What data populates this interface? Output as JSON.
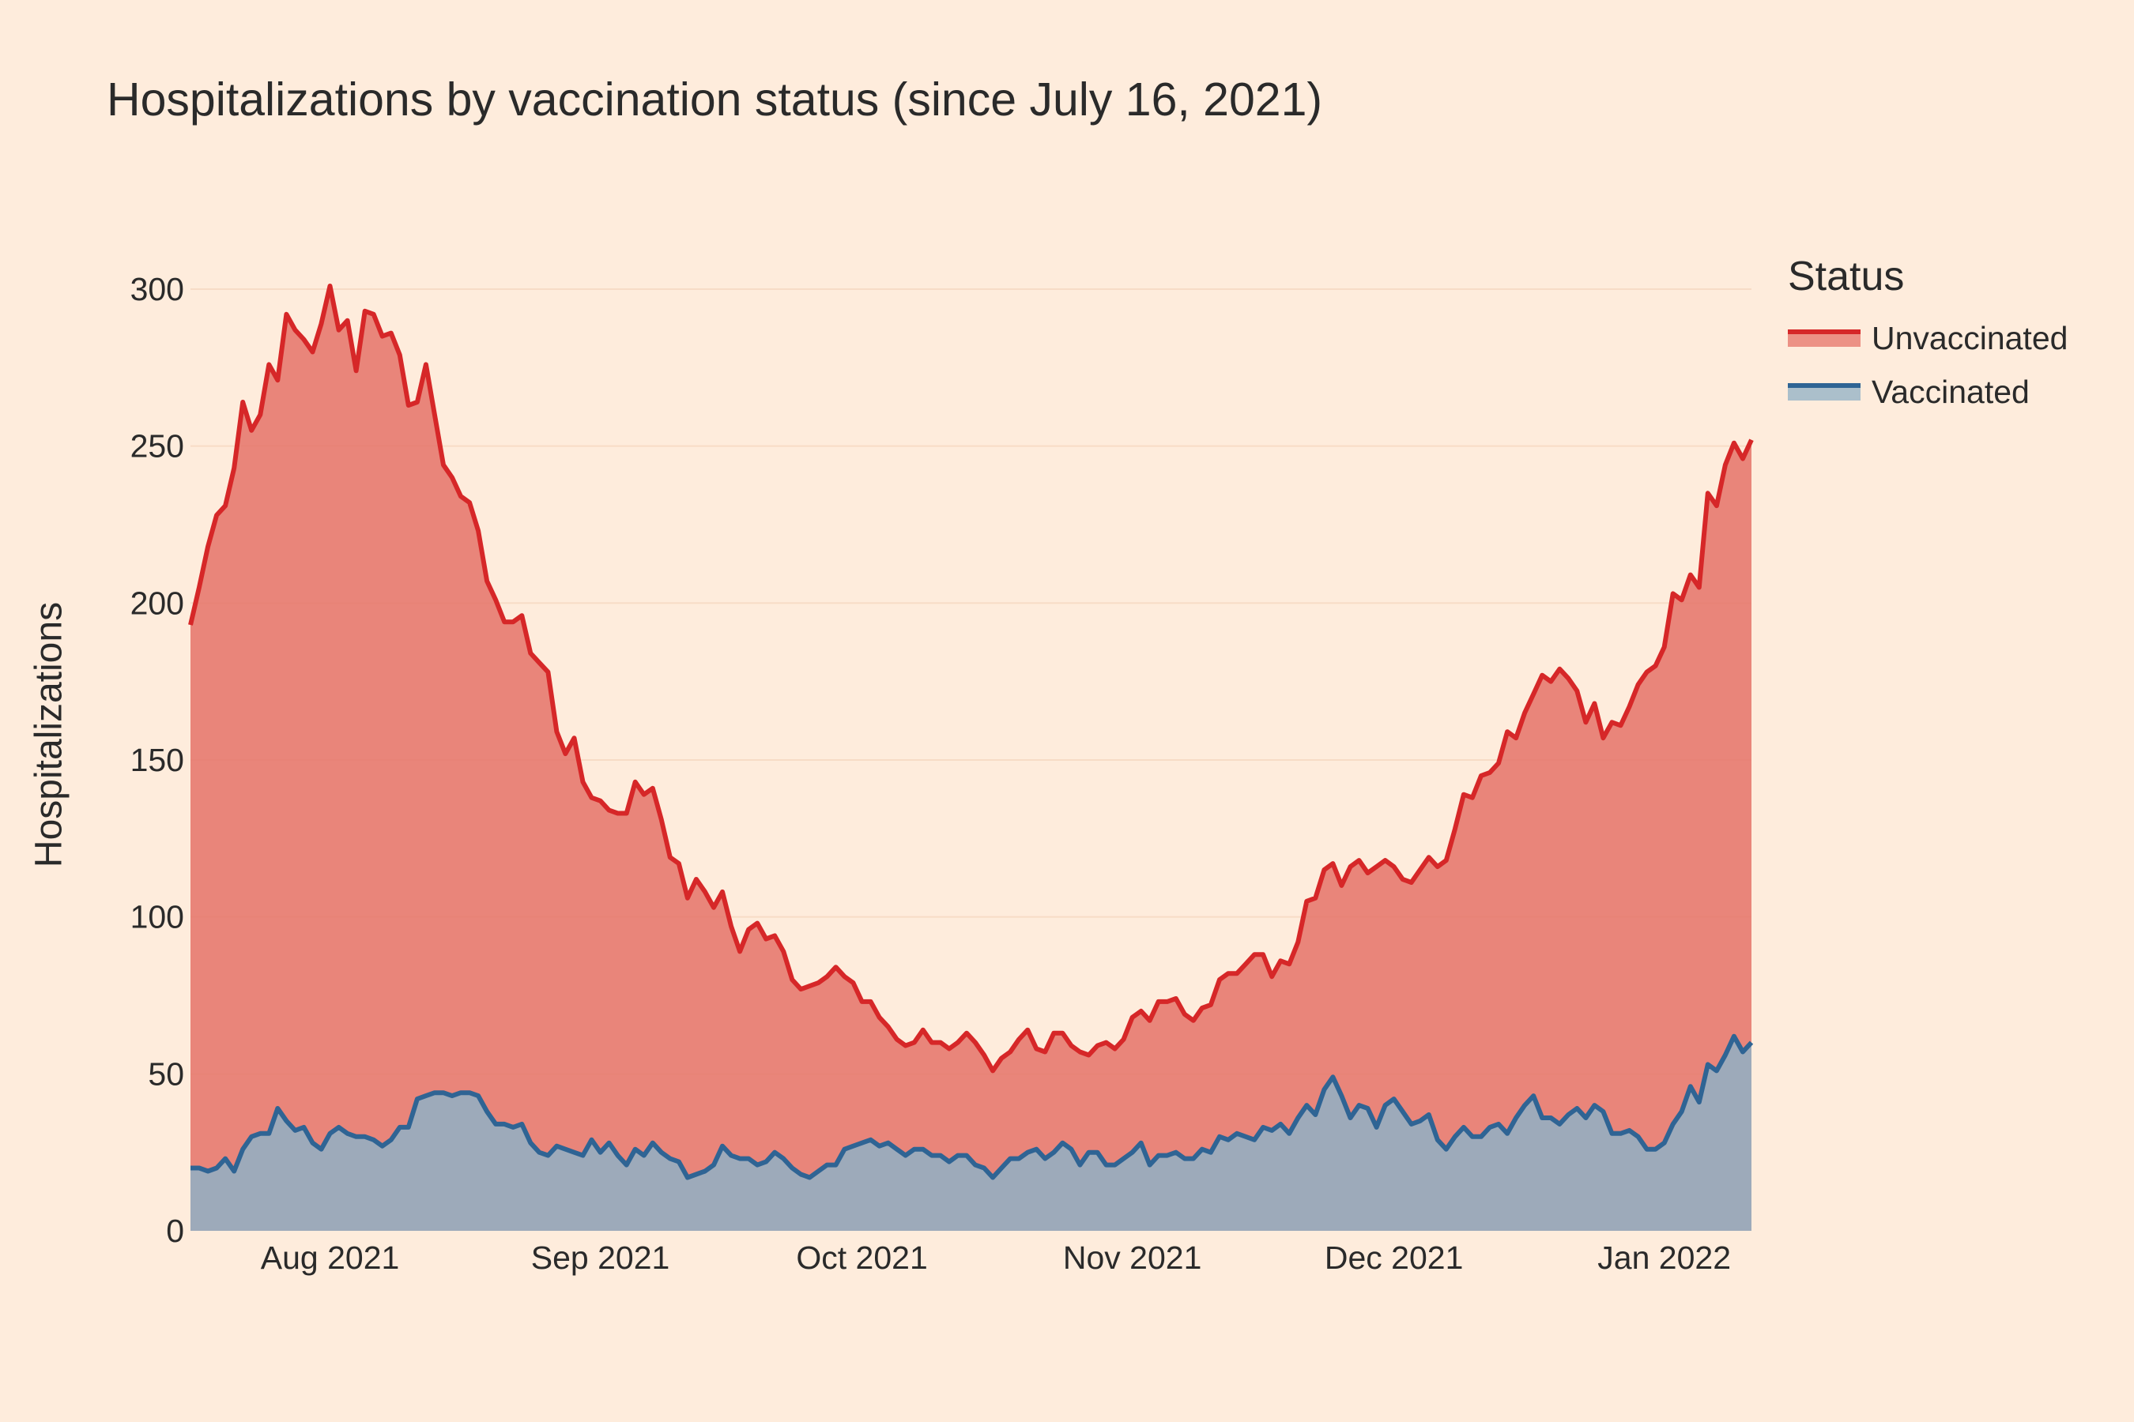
{
  "chart_data": {
    "type": "area",
    "title": "Hospitalizations by vaccination status (since July 16, 2021)",
    "xlabel": "",
    "ylabel": "Hospitalizations",
    "x_start": "2021-07-16",
    "x_end": "2022-01-11",
    "ylim": [
      0,
      300
    ],
    "yticks": [
      0,
      50,
      100,
      150,
      200,
      250,
      300
    ],
    "xticks": [
      {
        "date": "2021-08-01",
        "label": "Aug 2021"
      },
      {
        "date": "2021-09-01",
        "label": "Sep 2021"
      },
      {
        "date": "2021-10-01",
        "label": "Oct 2021"
      },
      {
        "date": "2021-11-01",
        "label": "Nov 2021"
      },
      {
        "date": "2021-12-01",
        "label": "Dec 2021"
      },
      {
        "date": "2022-01-01",
        "label": "Jan 2022"
      }
    ],
    "grid": "horizontal",
    "legend": {
      "title": "Status",
      "placement": "right"
    },
    "series": [
      {
        "name": "Unvaccinated",
        "color": "#d62728",
        "fill": "#e57368",
        "stacked_total": true,
        "values": [
          193,
          205,
          218,
          228,
          231,
          243,
          264,
          255,
          260,
          276,
          271,
          292,
          287,
          284,
          280,
          289,
          301,
          287,
          290,
          274,
          293,
          292,
          285,
          286,
          279,
          263,
          264,
          276,
          260,
          244,
          240,
          234,
          232,
          223,
          207,
          201,
          194,
          194,
          196,
          184,
          181,
          178,
          159,
          152,
          157,
          143,
          138,
          137,
          134,
          133,
          133,
          143,
          139,
          141,
          131,
          119,
          117,
          106,
          112,
          108,
          103,
          108,
          97,
          89,
          96,
          98,
          93,
          94,
          89,
          80,
          77,
          78,
          79,
          81,
          84,
          81,
          79,
          73,
          73,
          68,
          65,
          61,
          59,
          60,
          64,
          60,
          60,
          58,
          60,
          63,
          60,
          56,
          51,
          55,
          57,
          61,
          64,
          58,
          57,
          63,
          63,
          59,
          57,
          56,
          59,
          60,
          58,
          61,
          68,
          70,
          67,
          73,
          73,
          74,
          69,
          67,
          71,
          72,
          80,
          82,
          82,
          85,
          88,
          88,
          81,
          86,
          85,
          92,
          105,
          106,
          115,
          117,
          110,
          116,
          118,
          114,
          116,
          118,
          116,
          112,
          111,
          115,
          119,
          116,
          118,
          128,
          139,
          138,
          145,
          146,
          149,
          159,
          157,
          165,
          171,
          177,
          175,
          179,
          176,
          172,
          162,
          168,
          157,
          162,
          161,
          167,
          174,
          178,
          180,
          186,
          203,
          201,
          209,
          205,
          235,
          231,
          244,
          251,
          246,
          252
        ]
      },
      {
        "name": "Vaccinated",
        "color": "#2f6494",
        "fill": "#8fb0c6",
        "stacked_total": false,
        "values": [
          20,
          20,
          19,
          20,
          23,
          19,
          26,
          30,
          31,
          31,
          39,
          35,
          32,
          33,
          28,
          26,
          31,
          33,
          31,
          30,
          30,
          29,
          27,
          29,
          33,
          33,
          42,
          43,
          44,
          44,
          43,
          44,
          44,
          43,
          38,
          34,
          34,
          33,
          34,
          28,
          25,
          24,
          27,
          26,
          25,
          24,
          29,
          25,
          28,
          24,
          21,
          26,
          24,
          28,
          25,
          23,
          22,
          17,
          18,
          19,
          21,
          27,
          24,
          23,
          23,
          21,
          22,
          25,
          23,
          20,
          18,
          17,
          19,
          21,
          21,
          26,
          27,
          28,
          29,
          27,
          28,
          26,
          24,
          26,
          26,
          24,
          24,
          22,
          24,
          24,
          21,
          20,
          17,
          20,
          23,
          23,
          25,
          26,
          23,
          25,
          28,
          26,
          21,
          25,
          25,
          21,
          21,
          23,
          25,
          28,
          21,
          24,
          24,
          25,
          23,
          23,
          26,
          25,
          30,
          29,
          31,
          30,
          29,
          33,
          32,
          34,
          31,
          36,
          40,
          37,
          45,
          49,
          43,
          36,
          40,
          39,
          33,
          40,
          42,
          38,
          34,
          35,
          37,
          29,
          26,
          30,
          33,
          30,
          30,
          33,
          34,
          31,
          36,
          40,
          43,
          36,
          36,
          34,
          37,
          39,
          36,
          40,
          38,
          31,
          31,
          32,
          30,
          26,
          26,
          28,
          34,
          38,
          46,
          41,
          53,
          51,
          56,
          62,
          57,
          60
        ]
      }
    ]
  }
}
